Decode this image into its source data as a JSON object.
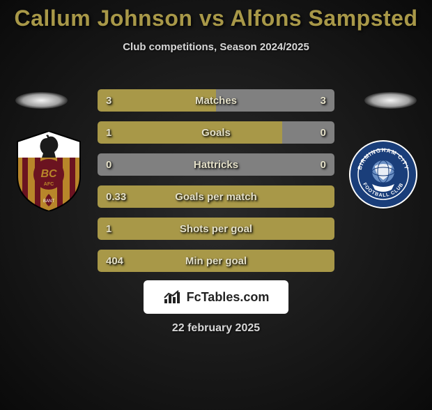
{
  "title": "Callum Johnson vs Alfons Sampsted",
  "subtitle": "Club competitions, Season 2024/2025",
  "date": "22 february 2025",
  "logo_text": "FcTables.com",
  "colors": {
    "left_bar": "#a89848",
    "right_bar": "#808080",
    "neutral_bar": "#808080",
    "title": "#a89848",
    "text_light": "#e4e0c8"
  },
  "stats": [
    {
      "label": "Matches",
      "left_val": "3",
      "right_val": "3",
      "left_pct": 50,
      "right_pct": 50,
      "left_color": "#a89848",
      "right_color": "#808080"
    },
    {
      "label": "Goals",
      "left_val": "1",
      "right_val": "0",
      "left_pct": 78,
      "right_pct": 22,
      "left_color": "#a89848",
      "right_color": "#808080"
    },
    {
      "label": "Hattricks",
      "left_val": "0",
      "right_val": "0",
      "left_pct": 100,
      "right_pct": 0,
      "left_color": "#808080",
      "right_color": "#808080"
    },
    {
      "label": "Goals per match",
      "left_val": "0.33",
      "right_val": "",
      "left_pct": 100,
      "right_pct": 0,
      "left_color": "#a89848",
      "right_color": "#808080"
    },
    {
      "label": "Shots per goal",
      "left_val": "1",
      "right_val": "",
      "left_pct": 100,
      "right_pct": 0,
      "left_color": "#a89848",
      "right_color": "#808080"
    },
    {
      "label": "Min per goal",
      "left_val": "404",
      "right_val": "",
      "left_pct": 100,
      "right_pct": 0,
      "left_color": "#a89848",
      "right_color": "#808080"
    }
  ],
  "club_left": {
    "name": "Bradford City AFC",
    "primary": "#b8862a",
    "secondary": "#6b1320",
    "accent": "#ffffff"
  },
  "club_right": {
    "name": "Birmingham City FC",
    "primary": "#1a3e7a",
    "secondary": "#ffffff",
    "text": "BIRMINGHAM CITY",
    "sub": "FOOTBALL CLUB"
  }
}
